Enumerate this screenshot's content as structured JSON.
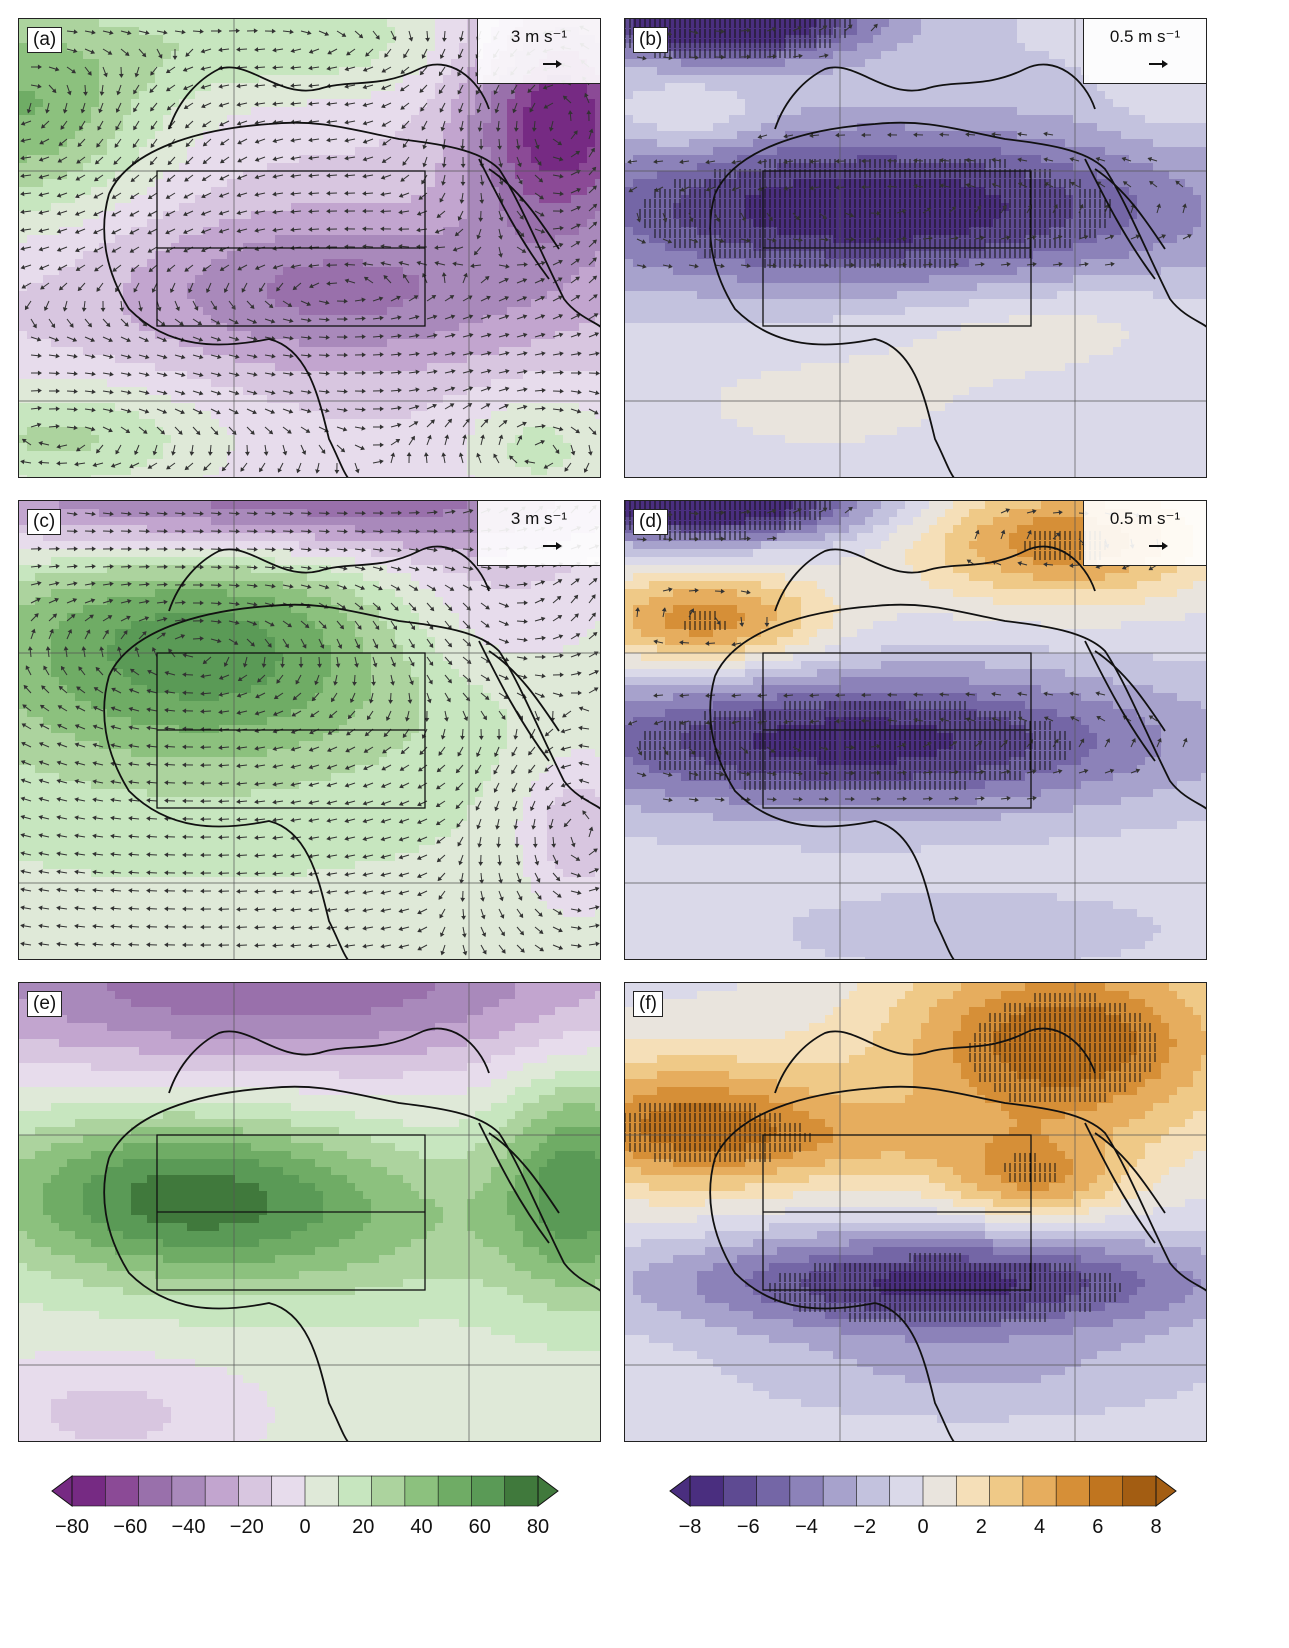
{
  "panels": [
    {
      "id": "a",
      "label": "(a)",
      "ref_label": "3 m s⁻¹",
      "scale": "green",
      "pattern": "a"
    },
    {
      "id": "b",
      "label": "(b)",
      "ref_label": "0.5 m s⁻¹",
      "scale": "orange",
      "pattern": "b"
    },
    {
      "id": "c",
      "label": "(c)",
      "ref_label": "3 m s⁻¹",
      "scale": "green",
      "pattern": "c"
    },
    {
      "id": "d",
      "label": "(d)",
      "ref_label": "0.5 m s⁻¹",
      "scale": "orange",
      "pattern": "d"
    },
    {
      "id": "e",
      "label": "(e)",
      "ref_label": "",
      "scale": "green",
      "pattern": "e"
    },
    {
      "id": "f",
      "label": "(f)",
      "ref_label": "",
      "scale": "orange",
      "pattern": "f"
    }
  ],
  "colorbars": {
    "left": {
      "ticks": [
        "−80",
        "−60",
        "−40",
        "−20",
        "0",
        "20",
        "40",
        "60",
        "80"
      ],
      "colors": [
        "#762a83",
        "#8b4a96",
        "#9970ab",
        "#a989bb",
        "#c2a5cf",
        "#d8c6e0",
        "#e7dcec",
        "#dfe9d8",
        "#c7e6bf",
        "#acd39e",
        "#8cc17e",
        "#6fac65",
        "#5a9a56",
        "#40793c"
      ]
    },
    "right": {
      "ticks": [
        "−8",
        "−6",
        "−4",
        "−2",
        "0",
        "2",
        "4",
        "6",
        "8"
      ],
      "colors": [
        "#4a2e7f",
        "#5e4a92",
        "#7466a6",
        "#8c82b9",
        "#a7a2cc",
        "#c3c2de",
        "#dad9e9",
        "#e9e4dd",
        "#f5dfb8",
        "#efc987",
        "#e6ad5e",
        "#d68f37",
        "#c0751f",
        "#a35d12"
      ]
    }
  }
}
